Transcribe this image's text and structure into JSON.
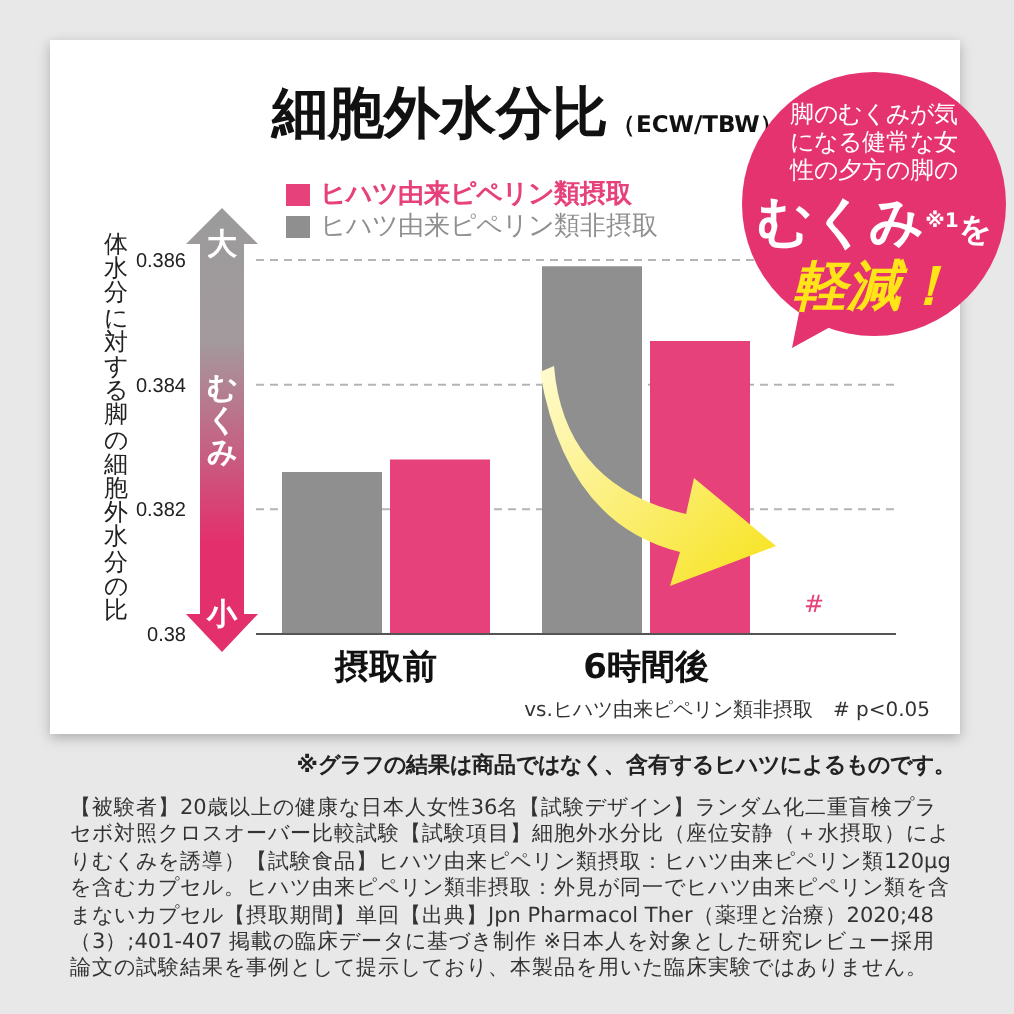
{
  "chart_data": {
    "type": "bar",
    "title": "細胞外水分比",
    "subtitle": "（ECW/TBW）",
    "ylabel": "体水分に対する脚の細胞外水分の比",
    "categories": [
      "摂取前",
      "6時間後"
    ],
    "series": [
      {
        "name": "ヒハツ由来ピペリン類非摂取",
        "color": "#8f8f8f",
        "values": [
          0.3826,
          0.3859
        ]
      },
      {
        "name": "ヒハツ由来ピペリン類摂取",
        "color": "#e6417a",
        "values": [
          0.3828,
          0.3847
        ]
      }
    ],
    "ylim": [
      0.38,
      0.386
    ],
    "yticks": [
      0.38,
      0.382,
      0.384,
      0.386
    ],
    "grid": "y",
    "legend": "top left",
    "annotations": [
      "#",
      "vs.ヒハツ由来ピペリン類非摂取　# p<0.05",
      "大",
      "むくみ",
      "小",
      "脚のむくみが気になる健常な女性の夕方の脚の",
      "むくみ$^{※1}$を",
      "軽減！",
      "※グラフの結果は商品ではなく、含有するヒハツによるものです。",
      "【被験者】20歳以上の健康な日本人女性36名【試験デザイン】ランダム化二重盲検プラセボ対照クロスオーバー比較試験【試験項目】細胞外水分比（座位安静（＋水摂取）によりむくみを誘導）【試験食品】ヒハツ由来ピペリン類摂取：ヒハツ由来ピペリン類120μgを含むカプセル。ヒハツ由来ピペリン類非摂取：外見が同一でヒハツ由来ピペリン類を含まないカプセル【摂取期間】単回【出典】Jpn Pharmacol Ther（薬理と治療）2020;48（3）;401-407 掲載の臨床データに基づき制作 ※日本人を対象とした研究レビュー採用論文の試験結果を事例として提示しており、本製品を用いた臨床実験ではありません。"
    ]
  }
}
